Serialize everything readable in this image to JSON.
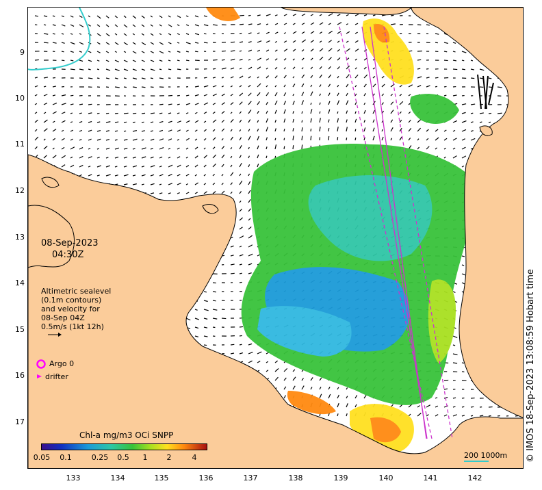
{
  "map": {
    "date": "08-Sep-2023",
    "time": "04:30Z",
    "legend_text": [
      "Altimetric sealevel",
      "(0.1m contours)",
      "and velocity for",
      "08-Sep 04Z",
      "0.5m/s (1kt 12h)"
    ],
    "argo_label": "Argo 0",
    "drifter_label": "drifter",
    "colorbar_title": "Chl-a mg/m3 OCi SNPP",
    "colorbar_ticks": [
      "0.05",
      "0.1",
      "0.25",
      "0.5",
      "1",
      "2",
      "4"
    ],
    "scale_label": "200  1000m",
    "credit": "© IMOS 18-Sep-2023 13:08:59 Hobart time",
    "lat_ticks": [
      "9",
      "10",
      "11",
      "12",
      "13",
      "14",
      "15",
      "16",
      "17"
    ],
    "lon_ticks": [
      "133",
      "134",
      "135",
      "136",
      "137",
      "138",
      "139",
      "140",
      "141",
      "142"
    ],
    "colors": {
      "land": "#fbcc9a",
      "coast": "#000000",
      "argo": "#ff00ff",
      "track": "#cc33cc",
      "isobath": "#33cccc"
    }
  }
}
